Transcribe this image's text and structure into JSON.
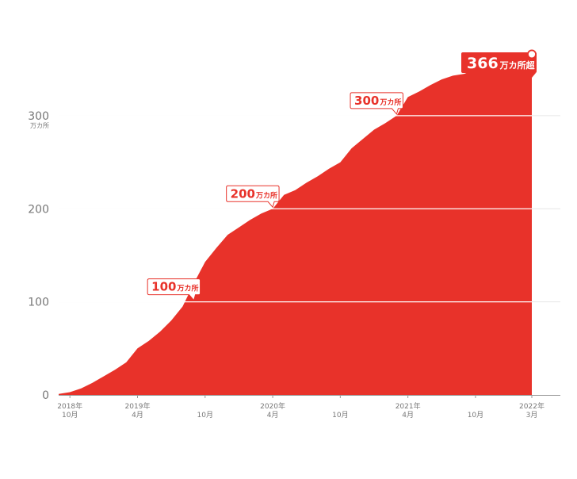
{
  "chart_data": {
    "type": "area",
    "x": [
      "2018-09",
      "2018-10",
      "2018-11",
      "2018-12",
      "2019-01",
      "2019-02",
      "2019-03",
      "2019-04",
      "2019-05",
      "2019-06",
      "2019-07",
      "2019-08",
      "2019-09",
      "2019-10",
      "2019-11",
      "2019-12",
      "2020-01",
      "2020-02",
      "2020-03",
      "2020-04",
      "2020-05",
      "2020-06",
      "2020-07",
      "2020-08",
      "2020-09",
      "2020-10",
      "2020-11",
      "2020-12",
      "2021-01",
      "2021-02",
      "2021-03",
      "2021-04",
      "2021-05",
      "2021-06",
      "2021-07",
      "2021-08",
      "2021-09",
      "2021-10",
      "2021-11",
      "2021-12",
      "2022-01",
      "2022-02",
      "2022-03"
    ],
    "values": [
      1,
      3,
      7,
      13,
      20,
      27,
      35,
      50,
      58,
      68,
      80,
      95,
      120,
      143,
      158,
      172,
      180,
      188,
      195,
      200,
      215,
      220,
      228,
      235,
      243,
      250,
      265,
      275,
      285,
      292,
      300,
      320,
      326,
      333,
      339,
      343,
      345,
      350,
      353,
      358,
      361,
      363,
      366
    ],
    "ylim": [
      0,
      380
    ],
    "y_ticks": [
      {
        "value": 0,
        "label": "0"
      },
      {
        "value": 100,
        "label": "100"
      },
      {
        "value": 200,
        "label": "200"
      },
      {
        "value": 300,
        "label": "300"
      }
    ],
    "y_unit": "万カ所",
    "x_ticks": [
      {
        "date": "2018-10",
        "line1": "2018年",
        "line2": "10月"
      },
      {
        "date": "2019-04",
        "line1": "2019年",
        "line2": "4月"
      },
      {
        "date": "2019-10",
        "line1": "",
        "line2": "10月"
      },
      {
        "date": "2020-04",
        "line1": "2020年",
        "line2": "4月"
      },
      {
        "date": "2020-10",
        "line1": "",
        "line2": "10月"
      },
      {
        "date": "2021-04",
        "line1": "2021年",
        "line2": "4月"
      },
      {
        "date": "2021-10",
        "line1": "",
        "line2": "10月"
      },
      {
        "date": "2022-03",
        "line1": "2022年",
        "line2": "3月"
      }
    ],
    "grid": true,
    "annotations": [
      {
        "value": 100,
        "date": "2019-09",
        "number": "100",
        "suffix": "万カ所"
      },
      {
        "value": 200,
        "date": "2020-04",
        "number": "200",
        "suffix": "万カ所"
      },
      {
        "value": 300,
        "date": "2021-03",
        "number": "300",
        "suffix": "万カ所"
      }
    ],
    "final_label": {
      "value": 366,
      "date": "2022-03",
      "number": "366",
      "suffix": "万カ所超"
    },
    "colors": {
      "area": "#e8322a",
      "grid": "#e6e6e6",
      "axis": "#999999",
      "text": "#777777"
    }
  }
}
